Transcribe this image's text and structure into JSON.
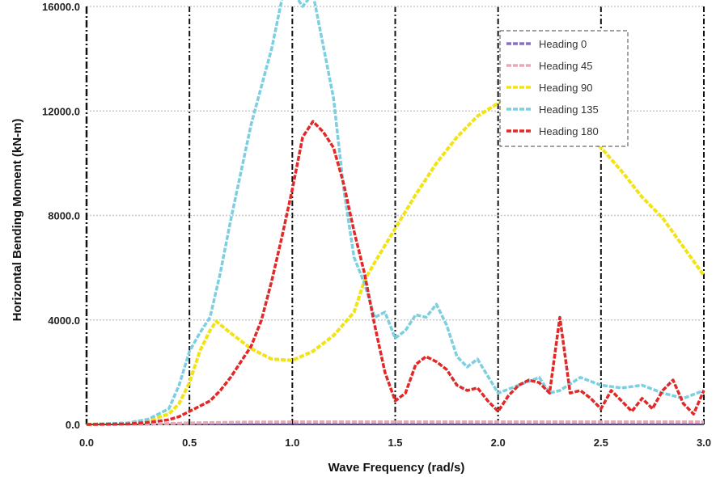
{
  "chart_data": {
    "type": "line",
    "title": "",
    "xlabel": "Wave Frequency (rad/s)",
    "ylabel": "Horizontal Bending Moment (kN-m)",
    "xlim": [
      0.0,
      3.0
    ],
    "ylim": [
      0,
      16000
    ],
    "x_ticks": [
      0.0,
      0.5,
      1.0,
      1.5,
      2.0,
      2.5,
      3.0
    ],
    "x_tick_labels": [
      "0.0",
      "0.5",
      "1.0",
      "1.5",
      "2.0",
      "2.5",
      "3.0"
    ],
    "y_ticks": [
      0,
      4000,
      8000,
      12000,
      16000
    ],
    "y_tick_labels": [
      "0.0",
      "4000.0",
      "8000.0",
      "12000.0",
      "16000.0"
    ],
    "grid": true,
    "legend_position": "top-right",
    "colors": {
      "heading_0": "#8a6fc9",
      "heading_45": "#e8a8b8",
      "heading_90": "#f2e414",
      "heading_135": "#7ccfe0",
      "heading_180": "#e32828"
    },
    "series": [
      {
        "name": "Heading 0",
        "color_key": "heading_0",
        "x": [
          0.0,
          0.25,
          0.5,
          0.75,
          1.0,
          1.25,
          1.5,
          1.75,
          2.0,
          2.25,
          2.5,
          2.75,
          3.0
        ],
        "values": [
          0,
          10,
          40,
          60,
          60,
          60,
          60,
          60,
          60,
          60,
          60,
          60,
          60
        ]
      },
      {
        "name": "Heading 45",
        "color_key": "heading_45",
        "x": [
          0.0,
          0.25,
          0.5,
          0.75,
          1.0,
          1.25,
          1.5,
          1.75,
          2.0,
          2.25,
          2.5,
          2.75,
          3.0
        ],
        "values": [
          0,
          10,
          60,
          90,
          100,
          100,
          100,
          100,
          100,
          100,
          100,
          100,
          100
        ]
      },
      {
        "name": "Heading 90",
        "color_key": "heading_90",
        "x": [
          0.0,
          0.2,
          0.3,
          0.4,
          0.45,
          0.5,
          0.55,
          0.6,
          0.63,
          0.7,
          0.8,
          0.9,
          1.0,
          1.1,
          1.2,
          1.3,
          1.35,
          1.4,
          1.5,
          1.6,
          1.7,
          1.8,
          1.9,
          2.0,
          2.1,
          2.2,
          2.3,
          2.4,
          2.5,
          2.6,
          2.7,
          2.8,
          2.9,
          3.0
        ],
        "values": [
          0,
          50,
          150,
          400,
          800,
          1600,
          2800,
          3600,
          3950,
          3500,
          2900,
          2500,
          2450,
          2800,
          3400,
          4300,
          5500,
          6200,
          7500,
          8800,
          10000,
          11000,
          11800,
          12300,
          12500,
          12400,
          12000,
          11300,
          10600,
          9700,
          8700,
          7900,
          6800,
          5700
        ]
      },
      {
        "name": "Heading 135",
        "color_key": "heading_135",
        "x": [
          0.0,
          0.2,
          0.3,
          0.4,
          0.45,
          0.5,
          0.55,
          0.6,
          0.65,
          0.7,
          0.8,
          0.9,
          0.95,
          1.0,
          1.05,
          1.1,
          1.2,
          1.25,
          1.3,
          1.35,
          1.4,
          1.45,
          1.5,
          1.55,
          1.6,
          1.65,
          1.7,
          1.75,
          1.8,
          1.85,
          1.9,
          2.0,
          2.1,
          2.2,
          2.25,
          2.3,
          2.4,
          2.5,
          2.6,
          2.7,
          2.8,
          2.9,
          3.0
        ],
        "values": [
          0,
          60,
          200,
          600,
          1500,
          2800,
          3500,
          4100,
          5800,
          7800,
          11500,
          14400,
          16300,
          16600,
          16000,
          16500,
          12500,
          9000,
          6400,
          5400,
          4100,
          4300,
          3300,
          3600,
          4200,
          4100,
          4600,
          3800,
          2600,
          2200,
          2500,
          1200,
          1500,
          1800,
          1200,
          1300,
          1800,
          1500,
          1400,
          1500,
          1200,
          1000,
          1300
        ]
      },
      {
        "name": "Heading 180",
        "color_key": "heading_180",
        "x": [
          0.0,
          0.2,
          0.3,
          0.4,
          0.45,
          0.5,
          0.55,
          0.6,
          0.65,
          0.7,
          0.75,
          0.8,
          0.85,
          0.9,
          0.95,
          1.0,
          1.05,
          1.1,
          1.15,
          1.2,
          1.25,
          1.3,
          1.35,
          1.4,
          1.45,
          1.5,
          1.55,
          1.6,
          1.65,
          1.7,
          1.75,
          1.8,
          1.85,
          1.9,
          1.95,
          2.0,
          2.05,
          2.1,
          2.15,
          2.2,
          2.25,
          2.3,
          2.35,
          2.4,
          2.45,
          2.5,
          2.55,
          2.6,
          2.65,
          2.7,
          2.75,
          2.8,
          2.85,
          2.9,
          2.95,
          3.0
        ],
        "values": [
          0,
          20,
          80,
          180,
          300,
          500,
          700,
          900,
          1300,
          1800,
          2400,
          3000,
          4000,
          5500,
          7200,
          9000,
          11000,
          11600,
          11200,
          10600,
          9200,
          7400,
          5800,
          3800,
          2000,
          900,
          1200,
          2300,
          2600,
          2400,
          2100,
          1500,
          1300,
          1400,
          900,
          500,
          1100,
          1500,
          1700,
          1600,
          1200,
          4100,
          1200,
          1300,
          1000,
          600,
          1300,
          900,
          500,
          1000,
          600,
          1300,
          1700,
          800,
          400,
          1300
        ]
      }
    ]
  }
}
